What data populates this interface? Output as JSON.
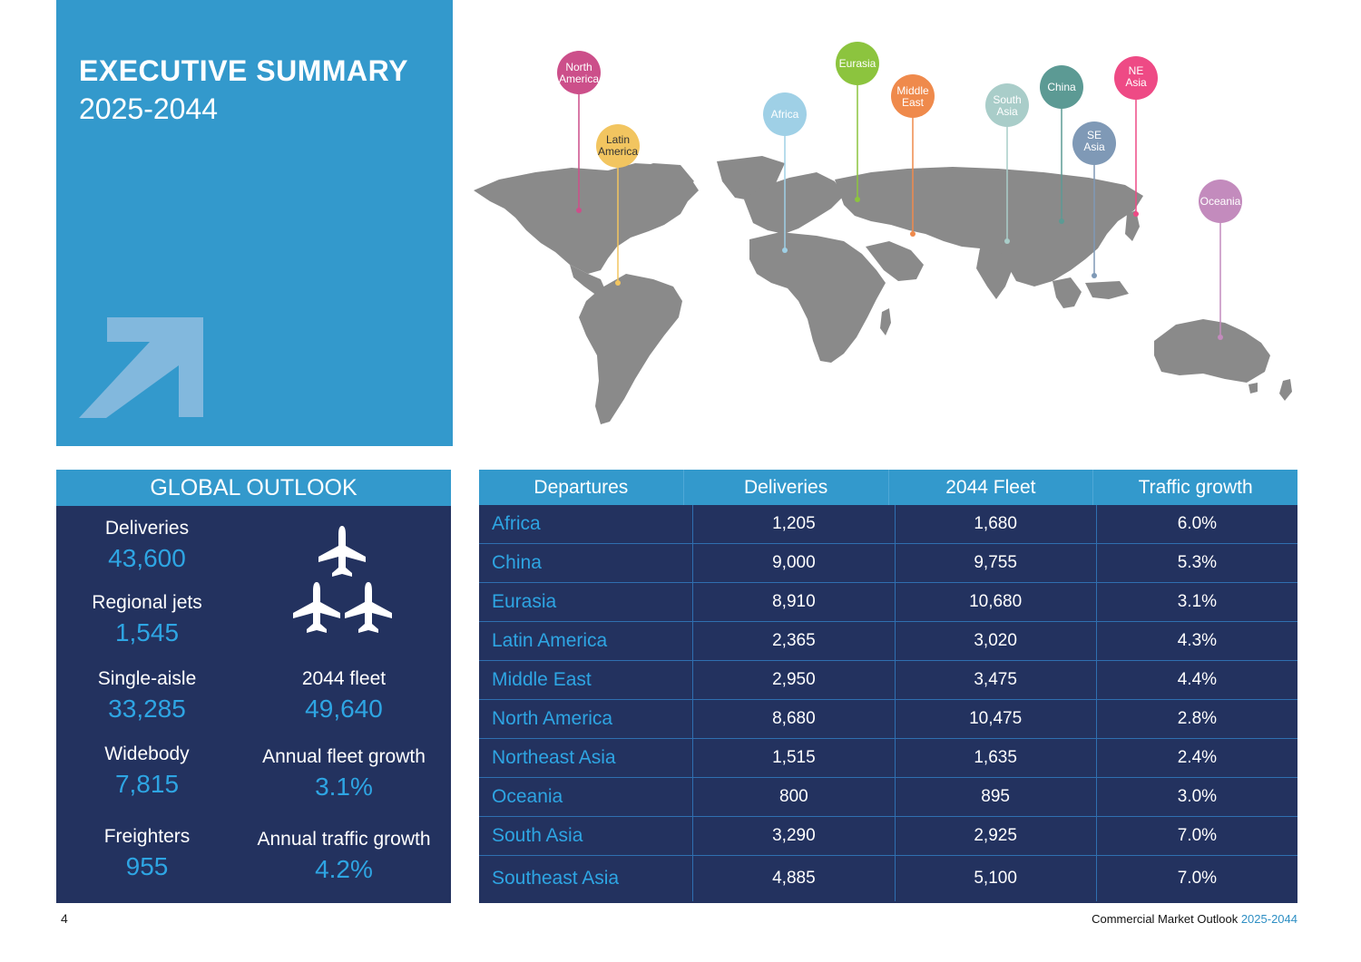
{
  "hero": {
    "title": "EXECUTIVE SUMMARY",
    "years": "2025-2044",
    "color": "#3399cc"
  },
  "map": {
    "pins": [
      {
        "label": [
          "North",
          "America"
        ],
        "color": "#cc4f8a"
      },
      {
        "label": [
          "Latin",
          "America"
        ],
        "color": "#f2c560"
      },
      {
        "label": [
          "Africa"
        ],
        "color": "#9fd0e6"
      },
      {
        "label": [
          "Eurasia"
        ],
        "color": "#8cc43e"
      },
      {
        "label": [
          "Middle",
          "East"
        ],
        "color": "#ef8a4c"
      },
      {
        "label": [
          "South",
          "Asia"
        ],
        "color": "#a9cdc9"
      },
      {
        "label": [
          "China"
        ],
        "color": "#5c9a94"
      },
      {
        "label": [
          "SE",
          "Asia"
        ],
        "color": "#7f99b6"
      },
      {
        "label": [
          "NE",
          "Asia"
        ],
        "color": "#ee4a85"
      },
      {
        "label": [
          "Oceania"
        ],
        "color": "#c38bbd"
      }
    ]
  },
  "outlook": {
    "header": "GLOBAL OUTLOOK",
    "deliveries_label": "Deliveries",
    "deliveries_value": "43,600",
    "regional_label": "Regional jets",
    "regional_value": "1,545",
    "single_label": "Single-aisle",
    "single_value": "33,285",
    "widebody_label": "Widebody",
    "widebody_value": "7,815",
    "freighters_label": "Freighters",
    "freighters_value": "955",
    "fleet_label": "2044 fleet",
    "fleet_value": "49,640",
    "fleet_growth_label": "Annual fleet growth",
    "fleet_growth_value": "3.1%",
    "traffic_growth_label": "Annual traffic growth",
    "traffic_growth_value": "4.2%"
  },
  "table": {
    "headers": [
      "Departures",
      "Deliveries",
      "2044 Fleet",
      "Traffic growth"
    ],
    "rows": [
      [
        "Africa",
        "1,205",
        "1,680",
        "6.0%"
      ],
      [
        "China",
        "9,000",
        "9,755",
        "5.3%"
      ],
      [
        "Eurasia",
        "8,910",
        "10,680",
        "3.1%"
      ],
      [
        "Latin America",
        "2,365",
        "3,020",
        "4.3%"
      ],
      [
        "Middle East",
        "2,950",
        "3,475",
        "4.4%"
      ],
      [
        "North America",
        "8,680",
        "10,475",
        "2.8%"
      ],
      [
        "Northeast Asia",
        "1,515",
        "1,635",
        "2.4%"
      ],
      [
        "Oceania",
        "800",
        "895",
        "3.0%"
      ],
      [
        "South Asia",
        "3,290",
        "2,925",
        "7.0%"
      ],
      [
        "Southeast Asia",
        "4,885",
        "5,100",
        "7.0%"
      ]
    ]
  },
  "footer": {
    "page_number": "4",
    "title": "Commercial Market Outlook",
    "years": "2025-2044"
  }
}
